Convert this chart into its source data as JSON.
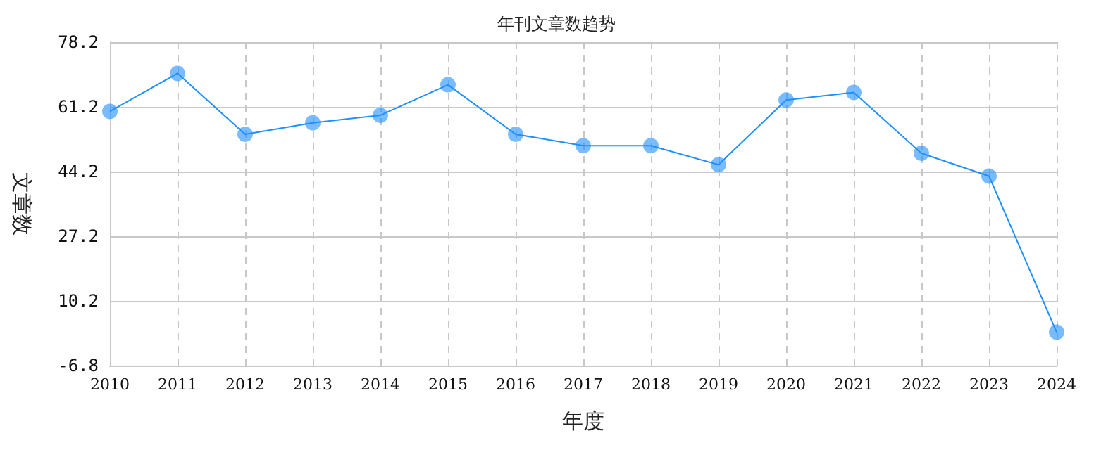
{
  "chart_data": {
    "type": "line",
    "title": "年刊文章数趋势",
    "xlabel": "年度",
    "ylabel": "文章数",
    "categories": [
      "2010",
      "2011",
      "2012",
      "2013",
      "2014",
      "2015",
      "2016",
      "2017",
      "2018",
      "2019",
      "2020",
      "2021",
      "2022",
      "2023",
      "2024"
    ],
    "series": [
      {
        "color": "#1e90ff",
        "values": [
          60,
          70,
          54,
          57,
          59,
          67,
          54,
          51,
          51,
          46,
          63,
          65,
          49,
          43,
          2
        ]
      }
    ],
    "ylim": [
      -6.8,
      78.2
    ],
    "yticks": [
      -6.8,
      10.2,
      27.2,
      44.2,
      61.2,
      78.2
    ],
    "grid": true,
    "marker": "circle",
    "line_style": "solid"
  }
}
